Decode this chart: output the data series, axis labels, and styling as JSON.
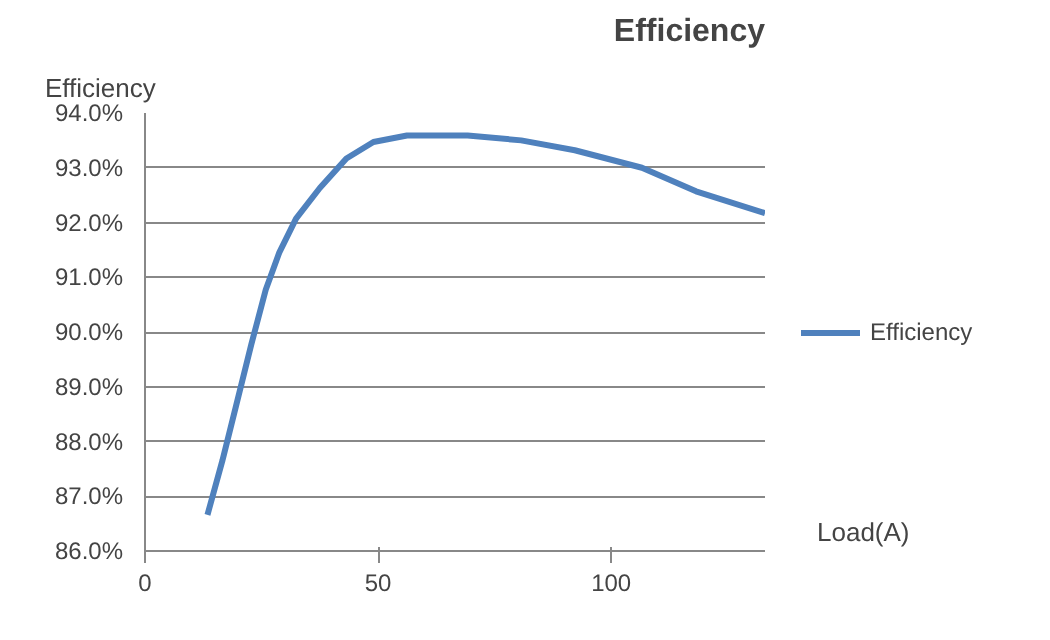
{
  "chart_data": {
    "type": "line",
    "title": "Efficiency",
    "ylabel": "Efficiency",
    "xlabel": "Load(A)",
    "x": [
      13.4,
      16.6,
      19.5,
      22.8,
      25.9,
      28.8,
      32.4,
      37.5,
      43.2,
      49.0,
      56.2,
      69.2,
      80.7,
      92.2,
      106.6,
      118.2,
      133.0
    ],
    "series": [
      {
        "name": "Efficiency",
        "color": "#4f81bd",
        "values": [
          86.66,
          87.65,
          88.64,
          89.77,
          90.77,
          91.45,
          92.07,
          92.63,
          93.17,
          93.47,
          93.59,
          93.59,
          93.5,
          93.32,
          93.0,
          92.57,
          92.17
        ]
      }
    ],
    "xlim": [
      0,
      133
    ],
    "xticks": [
      0,
      50,
      100
    ],
    "ylim": [
      86,
      94
    ],
    "yticks": [
      {
        "value": 86,
        "label": "86.0%"
      },
      {
        "value": 87,
        "label": "87.0%"
      },
      {
        "value": 88,
        "label": "88.0%"
      },
      {
        "value": 89,
        "label": "89.0%"
      },
      {
        "value": 90,
        "label": "90.0%"
      },
      {
        "value": 91,
        "label": "91.0%"
      },
      {
        "value": 92,
        "label": "92.0%"
      },
      {
        "value": 93,
        "label": "93.0%"
      },
      {
        "value": 94,
        "label": "94.0%"
      }
    ],
    "grid": "y",
    "legend": "right",
    "marker": "none",
    "line_style": "solid"
  }
}
